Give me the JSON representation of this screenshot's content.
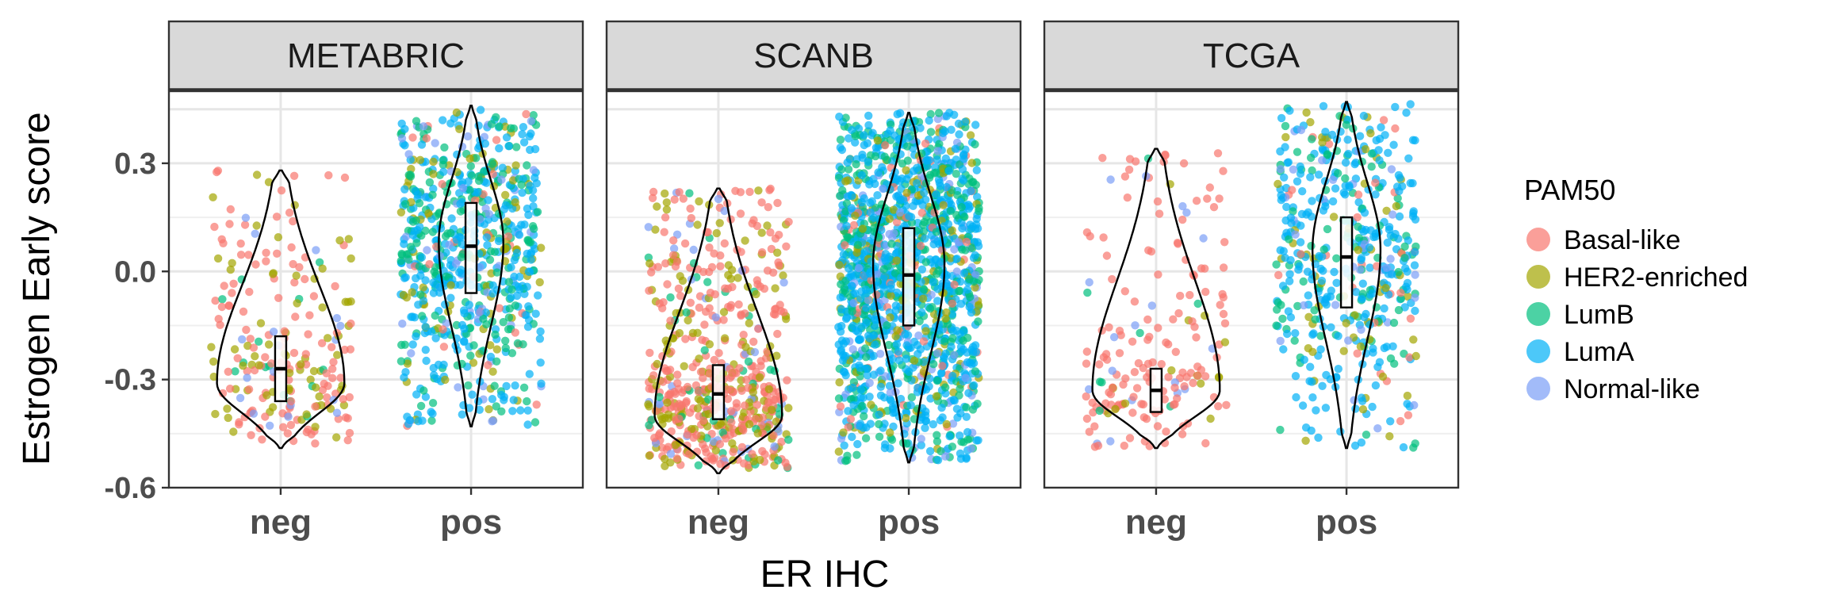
{
  "chart_data": {
    "type": "violin",
    "xlabel": "ER IHC",
    "ylabel": "Estrogen Early score",
    "ylim": [
      -0.6,
      0.5
    ],
    "y_ticks": [
      {
        "value": -0.6,
        "label": "-0.6"
      },
      {
        "value": -0.3,
        "label": "-0.3"
      },
      {
        "value": 0.0,
        "label": "0.0"
      },
      {
        "value": 0.3,
        "label": "0.3"
      }
    ],
    "categories": [
      "neg",
      "pos"
    ],
    "grid": true,
    "legend": {
      "title": "PAM50",
      "position": "right",
      "entries": [
        {
          "name": "Basal-like",
          "color": "#F8766D"
        },
        {
          "name": "HER2-enriched",
          "color": "#A3A500"
        },
        {
          "name": "LumB",
          "color": "#00BF7D"
        },
        {
          "name": "LumA",
          "color": "#00B0F6"
        },
        {
          "name": "Normal-like",
          "color": "#7B9EF7"
        }
      ]
    },
    "panels": [
      {
        "name": "METABRIC",
        "groups": [
          {
            "category": "neg",
            "violin": {
              "min": -0.49,
              "max": 0.28,
              "mode": -0.31,
              "width": 0.75
            },
            "box": {
              "q1": -0.36,
              "median": -0.27,
              "q3": -0.18
            },
            "mix": [
              [
                "Basal-like",
                0.55
              ],
              [
                "HER2-enriched",
                0.3
              ],
              [
                "LumB",
                0.07
              ],
              [
                "Normal-like",
                0.08
              ]
            ],
            "point_range": [
              -0.48,
              0.28
            ],
            "n_points": 230
          },
          {
            "category": "pos",
            "violin": {
              "min": -0.43,
              "max": 0.46,
              "mode": 0.08,
              "width": 0.38
            },
            "box": {
              "q1": -0.06,
              "median": 0.07,
              "q3": 0.19
            },
            "mix": [
              [
                "LumA",
                0.45
              ],
              [
                "LumB",
                0.3
              ],
              [
                "HER2-enriched",
                0.12
              ],
              [
                "Normal-like",
                0.08
              ],
              [
                "Basal-like",
                0.05
              ]
            ],
            "point_range": [
              -0.43,
              0.45
            ],
            "n_points": 700
          }
        ]
      },
      {
        "name": "SCANB",
        "groups": [
          {
            "category": "neg",
            "violin": {
              "min": -0.56,
              "max": 0.23,
              "mode": -0.4,
              "width": 0.75
            },
            "box": {
              "q1": -0.41,
              "median": -0.34,
              "q3": -0.26
            },
            "mix": [
              [
                "Basal-like",
                0.55
              ],
              [
                "HER2-enriched",
                0.3
              ],
              [
                "LumB",
                0.07
              ],
              [
                "Normal-like",
                0.08
              ]
            ],
            "point_range": [
              -0.55,
              0.23
            ],
            "n_points": 600
          },
          {
            "category": "pos",
            "violin": {
              "min": -0.53,
              "max": 0.44,
              "mode": 0.02,
              "width": 0.42
            },
            "box": {
              "q1": -0.15,
              "median": -0.01,
              "q3": 0.12
            },
            "mix": [
              [
                "LumA",
                0.5
              ],
              [
                "LumB",
                0.28
              ],
              [
                "HER2-enriched",
                0.1
              ],
              [
                "Normal-like",
                0.08
              ],
              [
                "Basal-like",
                0.04
              ]
            ],
            "point_range": [
              -0.53,
              0.44
            ],
            "n_points": 1500
          }
        ]
      },
      {
        "name": "TCGA",
        "groups": [
          {
            "category": "neg",
            "violin": {
              "min": -0.49,
              "max": 0.34,
              "mode": -0.33,
              "width": 0.75
            },
            "box": {
              "q1": -0.39,
              "median": -0.33,
              "q3": -0.27
            },
            "mix": [
              [
                "Basal-like",
                0.78
              ],
              [
                "HER2-enriched",
                0.08
              ],
              [
                "LumB",
                0.06
              ],
              [
                "Normal-like",
                0.08
              ]
            ],
            "point_range": [
              -0.49,
              0.34
            ],
            "n_points": 190
          },
          {
            "category": "pos",
            "violin": {
              "min": -0.49,
              "max": 0.47,
              "mode": 0.06,
              "width": 0.4
            },
            "box": {
              "q1": -0.1,
              "median": 0.04,
              "q3": 0.15
            },
            "mix": [
              [
                "LumA",
                0.55
              ],
              [
                "LumB",
                0.22
              ],
              [
                "HER2-enriched",
                0.1
              ],
              [
                "Normal-like",
                0.08
              ],
              [
                "Basal-like",
                0.05
              ]
            ],
            "point_range": [
              -0.49,
              0.47
            ],
            "n_points": 500
          }
        ]
      }
    ]
  }
}
